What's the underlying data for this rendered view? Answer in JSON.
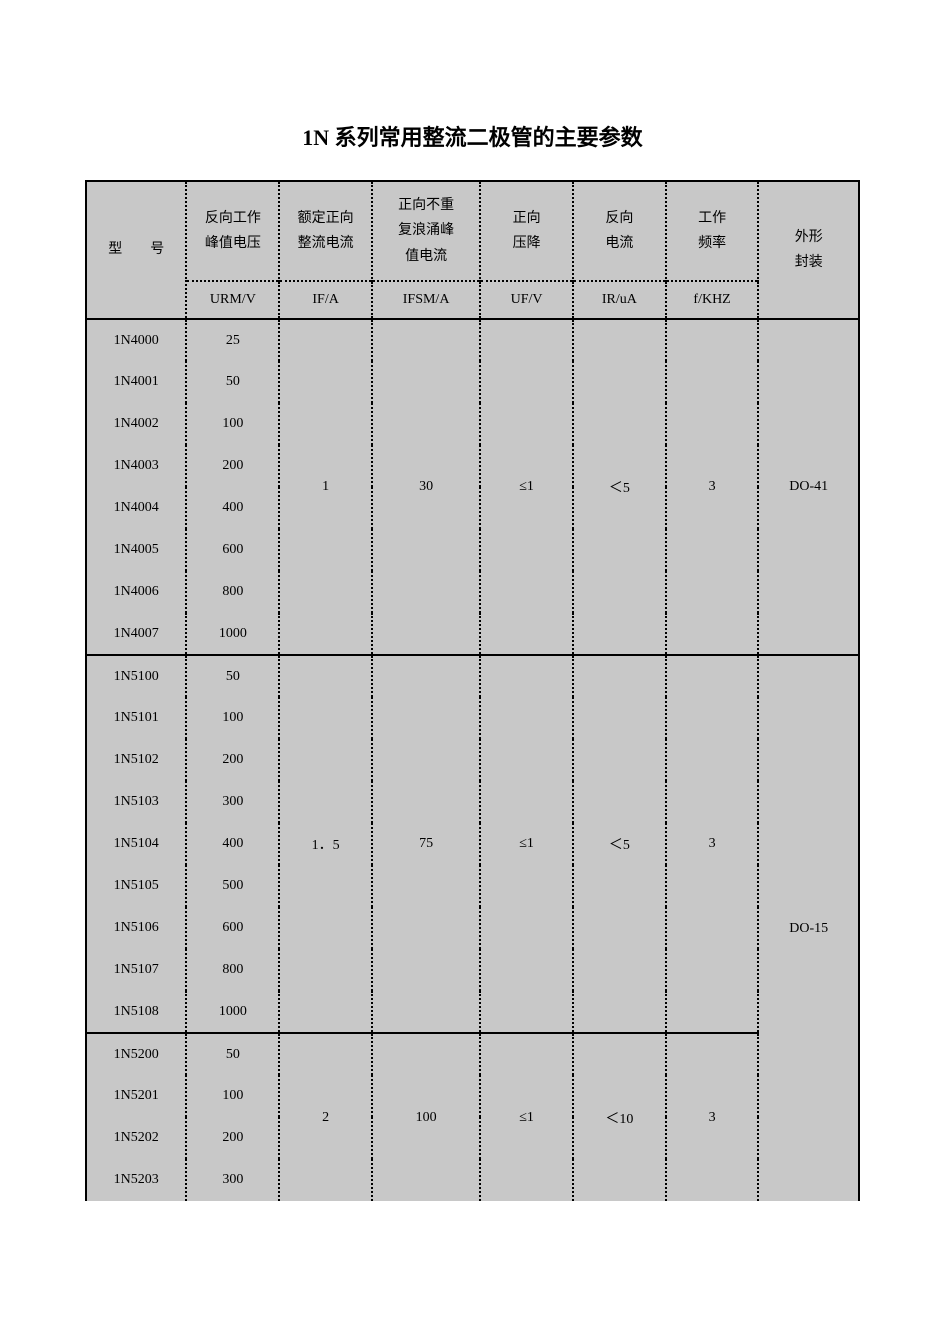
{
  "title": "1N 系列常用整流二极管的主要参数",
  "colors": {
    "page_bg": "#ffffff",
    "cell_bg": "#c8c8c8",
    "border": "#000000",
    "text": "#000000"
  },
  "typography": {
    "title_fontsize": 22,
    "title_weight": "bold",
    "body_fontsize": 14,
    "font_family": "SimSun"
  },
  "table": {
    "type": "table",
    "columns": [
      {
        "key": "model",
        "label": "型　　号",
        "unit": "",
        "width_pct": 13
      },
      {
        "key": "urm",
        "label": "反向工作峰值电压",
        "unit": "URM/V",
        "width_pct": 12
      },
      {
        "key": "if",
        "label": "额定正向整流电流",
        "unit": "IF/A",
        "width_pct": 12
      },
      {
        "key": "ifsm",
        "label": "正向不重复浪涌峰值电流",
        "unit": "IFSM/A",
        "width_pct": 14
      },
      {
        "key": "uf",
        "label": "正向压降",
        "unit": "UF/V",
        "width_pct": 12
      },
      {
        "key": "ir",
        "label": "反向电流",
        "unit": "IR/uA",
        "width_pct": 12
      },
      {
        "key": "freq",
        "label": "工作频率",
        "unit": "f/KHZ",
        "width_pct": 12
      },
      {
        "key": "package",
        "label": "外形封装",
        "unit": "",
        "width_pct": 13
      }
    ],
    "groups": [
      {
        "if": "1",
        "ifsm": "30",
        "uf": "≤1",
        "ir": "＜5",
        "freq": "3",
        "package": "DO-41",
        "rows": [
          {
            "model": "1N4000",
            "urm": "25"
          },
          {
            "model": "1N4001",
            "urm": "50"
          },
          {
            "model": "1N4002",
            "urm": "100"
          },
          {
            "model": "1N4003",
            "urm": "200"
          },
          {
            "model": "1N4004",
            "urm": "400"
          },
          {
            "model": "1N4005",
            "urm": "600"
          },
          {
            "model": "1N4006",
            "urm": "800"
          },
          {
            "model": "1N4007",
            "urm": "1000"
          }
        ]
      },
      {
        "if": "1．5",
        "ifsm": "75",
        "uf": "≤1",
        "ir": "＜5",
        "freq": "3",
        "rows": [
          {
            "model": "1N5100",
            "urm": "50"
          },
          {
            "model": "1N5101",
            "urm": "100"
          },
          {
            "model": "1N5102",
            "urm": "200"
          },
          {
            "model": "1N5103",
            "urm": "300"
          },
          {
            "model": "1N5104",
            "urm": "400"
          },
          {
            "model": "1N5105",
            "urm": "500"
          },
          {
            "model": "1N5106",
            "urm": "600"
          },
          {
            "model": "1N5107",
            "urm": "800"
          },
          {
            "model": "1N5108",
            "urm": "1000"
          }
        ]
      },
      {
        "if": "2",
        "ifsm": "100",
        "uf": "≤1",
        "ir": "＜10",
        "freq": "3",
        "package": "DO-15",
        "package_span_groups": [
          1,
          2
        ],
        "rows": [
          {
            "model": "1N5200",
            "urm": "50"
          },
          {
            "model": "1N5201",
            "urm": "100"
          },
          {
            "model": "1N5202",
            "urm": "200"
          },
          {
            "model": "1N5203",
            "urm": "300"
          }
        ]
      }
    ]
  }
}
